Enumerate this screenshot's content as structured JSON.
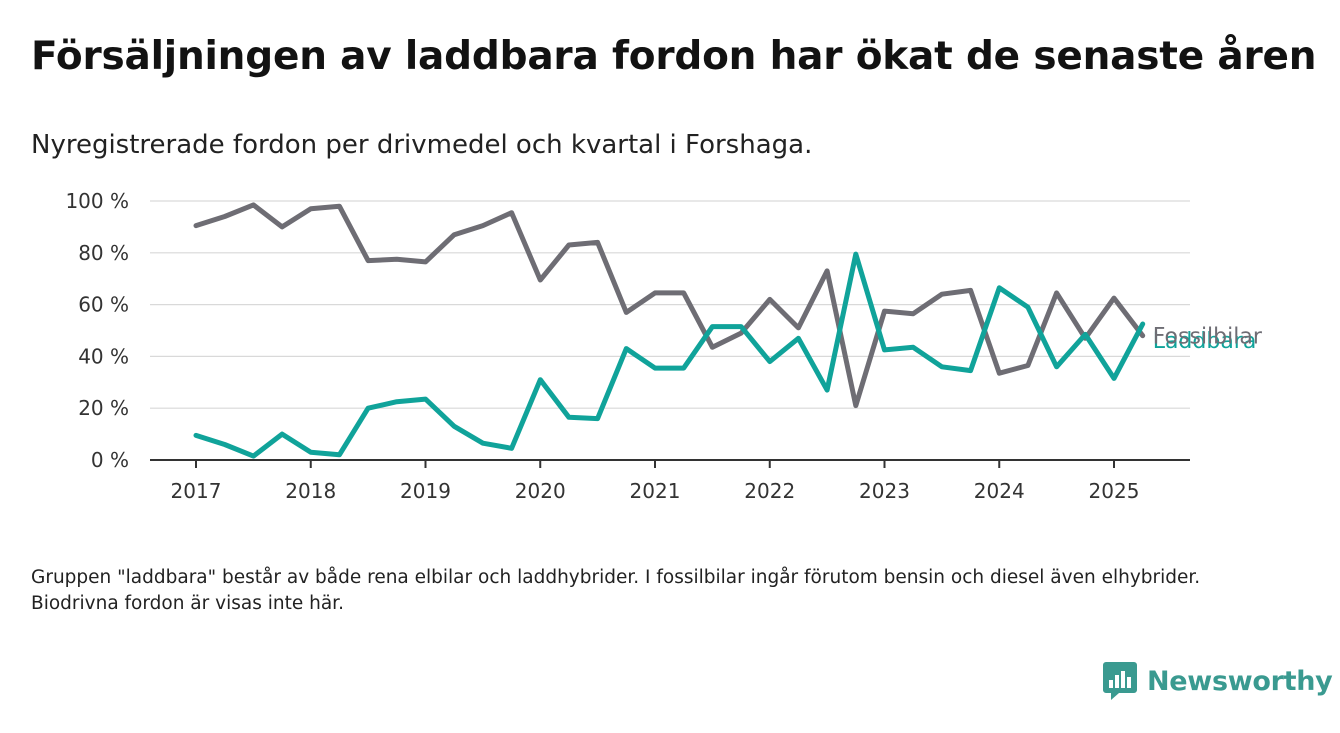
{
  "header": {
    "title": "Försäljningen av laddbara fordon har ökat de senaste åren",
    "subtitle": "Nyregistrerade fordon per drivmedel och kvartal i Forshaga."
  },
  "footer": {
    "note": "Gruppen \"laddbara\" består av både rena elbilar och laddhybrider. I fossilbilar ingår förutom bensin och diesel även elhybrider. Biodrivna fordon är visas inte här.",
    "brand": "Newsworthy",
    "brand_icon": "bar-chart-speech-bubble-icon"
  },
  "colors": {
    "fossil": "#6e6d74",
    "laddbara": "#10a39a",
    "grid": "#d9d9d9",
    "axis": "#333333",
    "brand": "#3a9a90"
  },
  "chart_data": {
    "type": "line",
    "x": [
      "2017 Q1",
      "2017 Q2",
      "2017 Q3",
      "2017 Q4",
      "2018 Q1",
      "2018 Q2",
      "2018 Q3",
      "2018 Q4",
      "2019 Q1",
      "2019 Q2",
      "2019 Q3",
      "2019 Q4",
      "2020 Q1",
      "2020 Q2",
      "2020 Q3",
      "2020 Q4",
      "2021 Q1",
      "2021 Q2",
      "2021 Q3",
      "2021 Q4",
      "2022 Q1",
      "2022 Q2",
      "2022 Q3",
      "2022 Q4",
      "2023 Q1",
      "2023 Q2",
      "2023 Q3",
      "2023 Q4",
      "2024 Q1",
      "2024 Q2",
      "2024 Q3",
      "2024 Q4",
      "2025 Q1",
      "2025 Q2"
    ],
    "series": [
      {
        "name": "Fossilbilar",
        "color": "#6e6d74",
        "values": [
          90.5,
          94,
          98.5,
          90,
          97,
          98,
          77,
          77.5,
          76.5,
          87,
          90.5,
          95.5,
          69.5,
          83,
          84,
          57,
          64.5,
          64.5,
          43.5,
          49,
          62,
          51,
          73,
          21,
          57.5,
          56.5,
          64,
          65.5,
          33.5,
          36.5,
          64.5,
          47,
          62.5,
          48
        ]
      },
      {
        "name": "Laddbara",
        "color": "#10a39a",
        "values": [
          9.5,
          6,
          1.5,
          10,
          3,
          2,
          20,
          22.5,
          23.5,
          13,
          6.5,
          4.5,
          31,
          16.5,
          16,
          43,
          35.5,
          35.5,
          51.5,
          51.5,
          38,
          47,
          27,
          79.5,
          42.5,
          43.5,
          36,
          34.5,
          66.5,
          59,
          36,
          48.5,
          31.5,
          52.5
        ]
      }
    ],
    "x_tick_labels": [
      "2017",
      "2018",
      "2019",
      "2020",
      "2021",
      "2022",
      "2023",
      "2024",
      "2025"
    ],
    "y_ticks": [
      0,
      20,
      40,
      60,
      80,
      100
    ],
    "y_tick_labels": [
      "0 %",
      "20 %",
      "40 %",
      "60 %",
      "80 %",
      "100 %"
    ],
    "ylim": [
      0,
      100
    ],
    "grid": true,
    "legend": "inline labels at line ends"
  }
}
